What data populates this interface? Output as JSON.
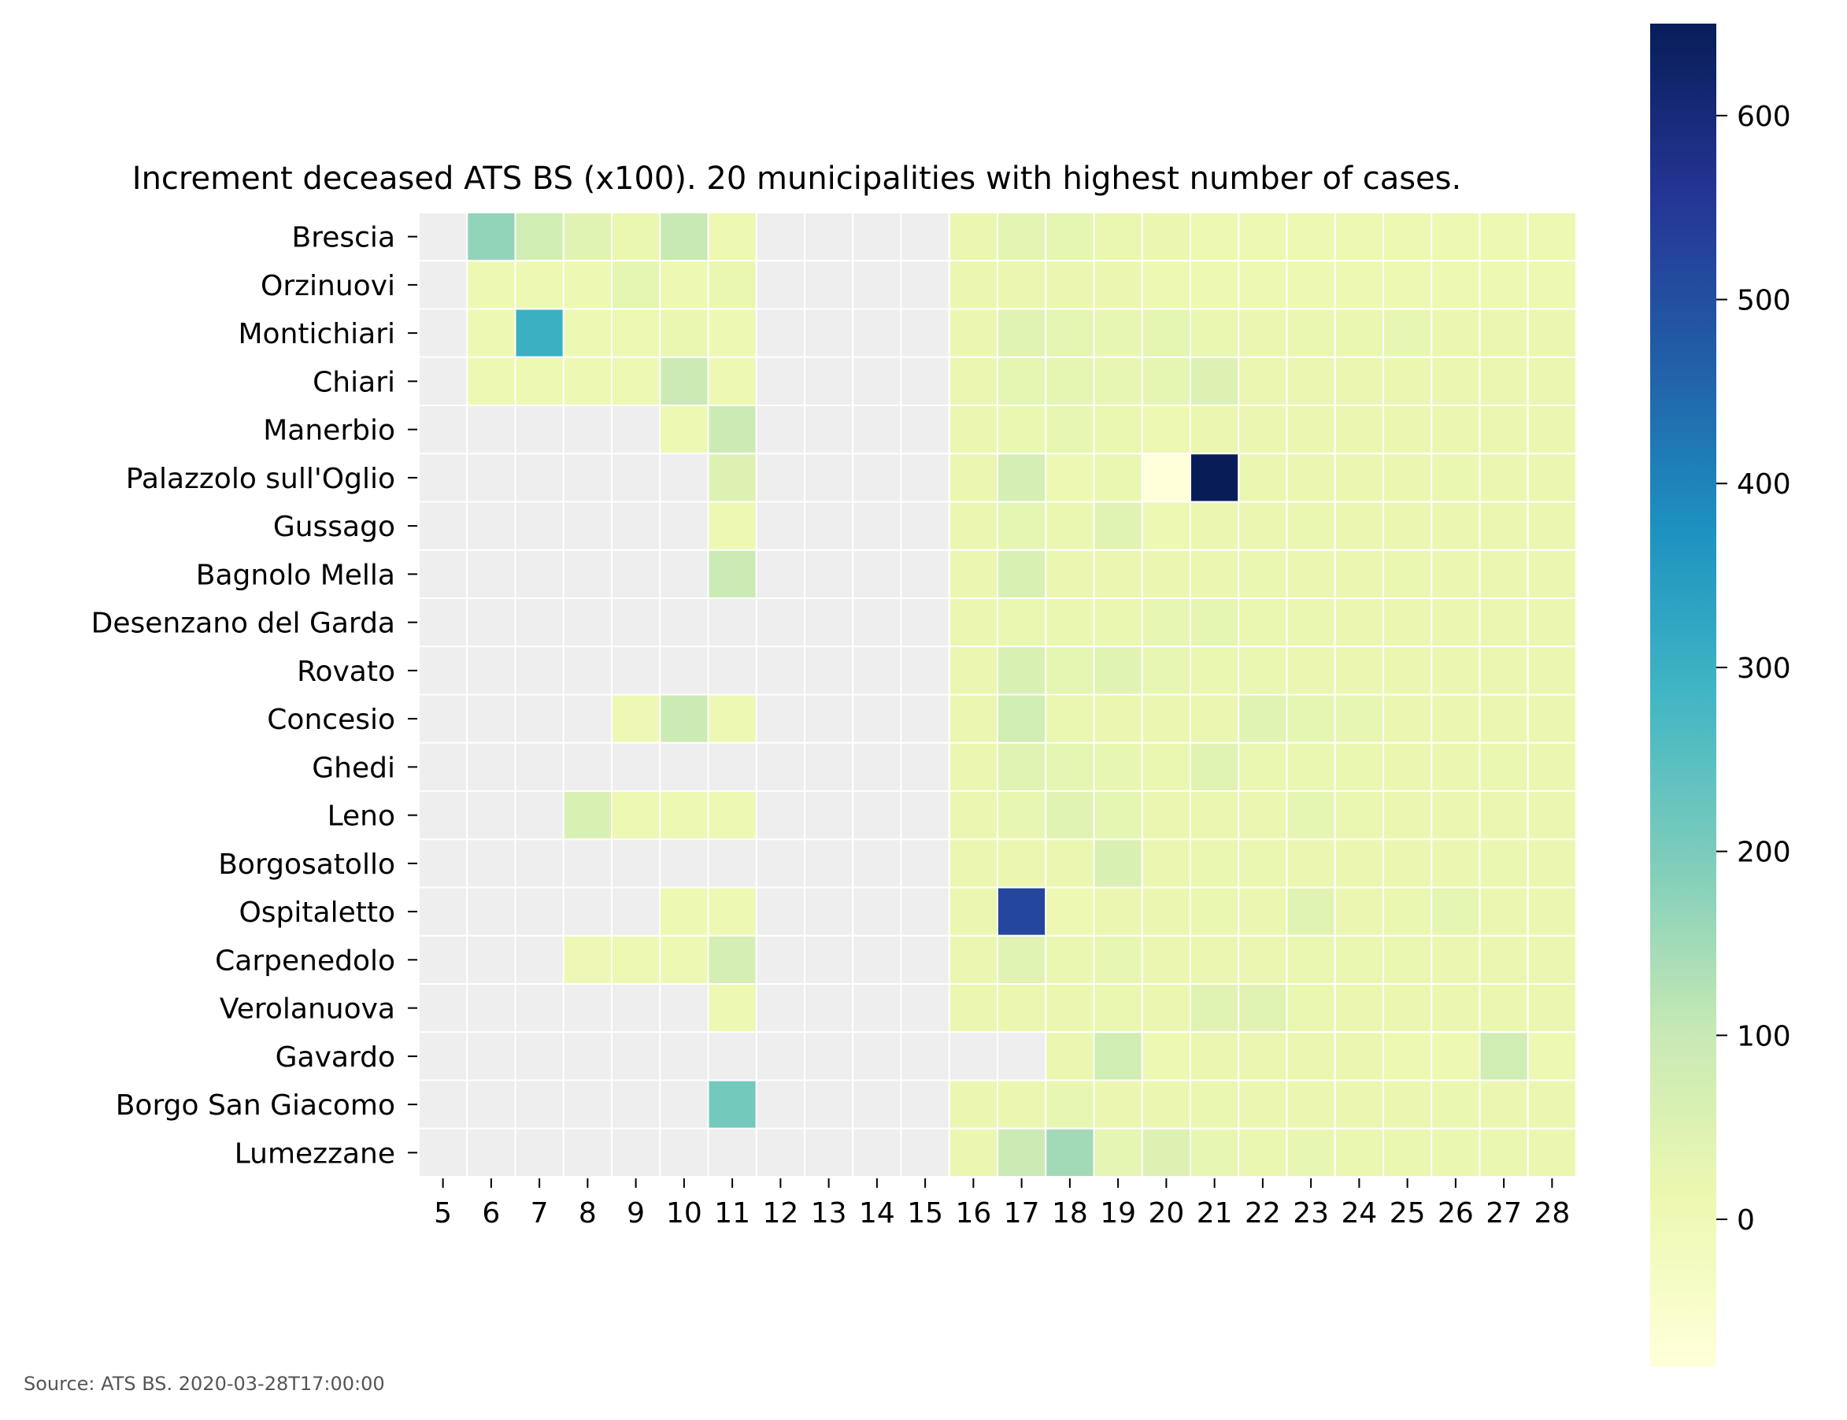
{
  "chart_data": {
    "type": "heatmap",
    "title": "Increment deceased ATS BS (x100). 20 municipalities with highest number of cases.",
    "x": [
      5,
      6,
      7,
      8,
      9,
      10,
      11,
      12,
      13,
      14,
      15,
      16,
      17,
      18,
      19,
      20,
      21,
      22,
      23,
      24,
      25,
      26,
      27,
      28
    ],
    "rows": [
      "Brescia",
      "Orzinuovi",
      "Montichiari",
      "Chiari",
      "Manerbio",
      "Palazzolo sull'Oglio",
      "Gussago",
      "Bagnolo Mella",
      "Desenzano del Garda",
      "Rovato",
      "Concesio",
      "Ghedi",
      "Leno",
      "Borgosatollo",
      "Ospitaletto",
      "Carpenedolo",
      "Verolanuova",
      "Gavardo",
      "Borgo San Giacomo",
      "Lumezzane"
    ],
    "values": [
      [
        null,
        170,
        80,
        40,
        20,
        100,
        10,
        null,
        null,
        null,
        null,
        15,
        35,
        30,
        20,
        15,
        10,
        10,
        10,
        10,
        10,
        10,
        10,
        10
      ],
      [
        null,
        10,
        10,
        10,
        30,
        10,
        20,
        null,
        null,
        null,
        null,
        15,
        15,
        15,
        15,
        10,
        10,
        10,
        10,
        10,
        10,
        10,
        10,
        10
      ],
      [
        null,
        10,
        300,
        10,
        10,
        20,
        10,
        null,
        null,
        null,
        null,
        15,
        40,
        30,
        25,
        30,
        20,
        15,
        20,
        20,
        25,
        15,
        15,
        15
      ],
      [
        null,
        10,
        10,
        10,
        10,
        90,
        10,
        null,
        null,
        null,
        null,
        15,
        30,
        30,
        25,
        30,
        50,
        15,
        15,
        15,
        15,
        15,
        15,
        15
      ],
      [
        null,
        null,
        null,
        null,
        null,
        10,
        90,
        null,
        null,
        null,
        null,
        15,
        20,
        25,
        20,
        10,
        15,
        15,
        15,
        15,
        15,
        15,
        15,
        15
      ],
      [
        null,
        null,
        null,
        null,
        null,
        null,
        50,
        null,
        null,
        null,
        null,
        15,
        70,
        10,
        20,
        -80,
        650,
        15,
        15,
        15,
        15,
        20,
        15,
        15
      ],
      [
        null,
        null,
        null,
        null,
        null,
        null,
        10,
        null,
        null,
        null,
        null,
        15,
        30,
        20,
        40,
        10,
        15,
        15,
        20,
        15,
        15,
        15,
        15,
        15
      ],
      [
        null,
        null,
        null,
        null,
        null,
        null,
        90,
        null,
        null,
        null,
        null,
        15,
        60,
        15,
        15,
        15,
        15,
        20,
        15,
        15,
        20,
        15,
        15,
        15
      ],
      [
        null,
        null,
        null,
        null,
        null,
        null,
        null,
        null,
        null,
        null,
        null,
        15,
        20,
        20,
        20,
        25,
        30,
        20,
        20,
        15,
        15,
        15,
        15,
        15
      ],
      [
        null,
        null,
        null,
        null,
        null,
        null,
        null,
        null,
        null,
        null,
        null,
        15,
        60,
        30,
        40,
        25,
        20,
        20,
        15,
        15,
        15,
        15,
        15,
        15
      ],
      [
        null,
        null,
        null,
        null,
        5,
        90,
        10,
        null,
        null,
        null,
        null,
        15,
        80,
        20,
        15,
        15,
        15,
        40,
        30,
        25,
        15,
        15,
        15,
        15
      ],
      [
        null,
        null,
        null,
        null,
        null,
        null,
        null,
        null,
        null,
        null,
        null,
        15,
        40,
        30,
        25,
        20,
        40,
        20,
        20,
        20,
        15,
        15,
        20,
        15
      ],
      [
        null,
        null,
        null,
        60,
        10,
        10,
        10,
        null,
        null,
        null,
        null,
        15,
        25,
        40,
        30,
        15,
        15,
        15,
        30,
        20,
        15,
        15,
        15,
        15
      ],
      [
        null,
        null,
        null,
        null,
        null,
        null,
        null,
        null,
        null,
        null,
        null,
        15,
        15,
        15,
        60,
        15,
        20,
        20,
        15,
        15,
        15,
        15,
        20,
        15
      ],
      [
        null,
        null,
        null,
        null,
        null,
        10,
        10,
        null,
        null,
        null,
        null,
        15,
        520,
        10,
        15,
        15,
        20,
        15,
        40,
        15,
        20,
        30,
        15,
        15
      ],
      [
        null,
        null,
        null,
        5,
        10,
        10,
        70,
        null,
        null,
        null,
        null,
        15,
        40,
        20,
        25,
        15,
        15,
        15,
        20,
        20,
        20,
        15,
        15,
        15
      ],
      [
        null,
        null,
        null,
        null,
        null,
        null,
        10,
        null,
        null,
        null,
        null,
        15,
        15,
        15,
        20,
        15,
        40,
        40,
        20,
        15,
        15,
        15,
        15,
        15
      ],
      [
        null,
        null,
        null,
        null,
        null,
        null,
        null,
        null,
        null,
        null,
        null,
        null,
        null,
        15,
        80,
        10,
        15,
        15,
        15,
        15,
        10,
        10,
        80,
        10
      ],
      [
        null,
        null,
        null,
        null,
        null,
        null,
        210,
        null,
        null,
        null,
        null,
        15,
        15,
        25,
        15,
        15,
        20,
        15,
        15,
        15,
        15,
        20,
        15,
        15
      ],
      [
        null,
        null,
        null,
        null,
        null,
        null,
        null,
        null,
        null,
        null,
        null,
        15,
        90,
        150,
        30,
        50,
        25,
        20,
        25,
        20,
        20,
        20,
        20,
        15
      ]
    ],
    "colorbar": {
      "min": -80,
      "max": 650,
      "ticks": [
        0,
        100,
        200,
        300,
        400,
        500,
        600
      ],
      "colormap": "YlGnBu"
    },
    "missing_color": "#eeeeee",
    "grid": false,
    "source": "Source: ATS BS. 2020-03-28T17:00:00"
  }
}
